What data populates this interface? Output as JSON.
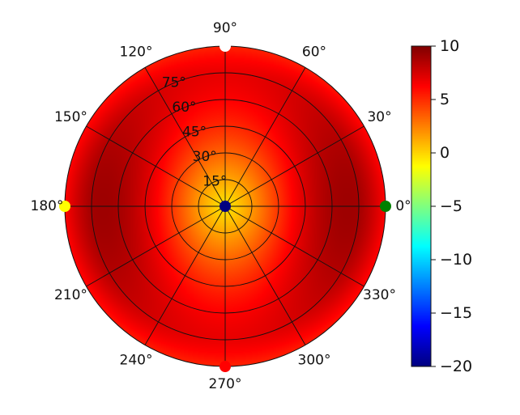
{
  "chart_data": {
    "type": "heatmap",
    "projection": "polar",
    "title": "",
    "theta_ticks_deg": [
      0,
      30,
      60,
      90,
      120,
      150,
      180,
      210,
      240,
      270,
      300,
      330
    ],
    "theta_tick_labels": [
      "0°",
      "30°",
      "60°",
      "90°",
      "120°",
      "150°",
      "180°",
      "210°",
      "240°",
      "270°",
      "300°",
      "330°"
    ],
    "radial_ticks_deg": [
      15,
      30,
      45,
      60,
      75
    ],
    "radial_tick_labels": [
      "15°",
      "30°",
      "45°",
      "60°",
      "75°"
    ],
    "radial_range_deg": [
      0,
      90
    ],
    "grid": true,
    "colorbar": {
      "colormap": "jet",
      "range": [
        -20,
        10
      ],
      "ticks": [
        10,
        5,
        0,
        -5,
        -10,
        -15,
        -20
      ],
      "tick_labels": [
        "10",
        "5",
        "0",
        "−5",
        "−10",
        "−15",
        "−20"
      ],
      "placement": "right"
    },
    "field": {
      "description": "value rises with radial angle; lobes along the 0° and 180° directions",
      "center_value": -20
    },
    "markers": [
      {
        "theta_deg": 0,
        "r_deg": 90,
        "color": "#008000"
      },
      {
        "theta_deg": 90,
        "r_deg": 90,
        "color": "#ffffff"
      },
      {
        "theta_deg": 180,
        "r_deg": 90,
        "color": "#ffff00"
      },
      {
        "theta_deg": 270,
        "r_deg": 90,
        "color": "#ff0000"
      },
      {
        "theta_deg": 0,
        "r_deg": 0,
        "color": "#000080"
      }
    ]
  }
}
